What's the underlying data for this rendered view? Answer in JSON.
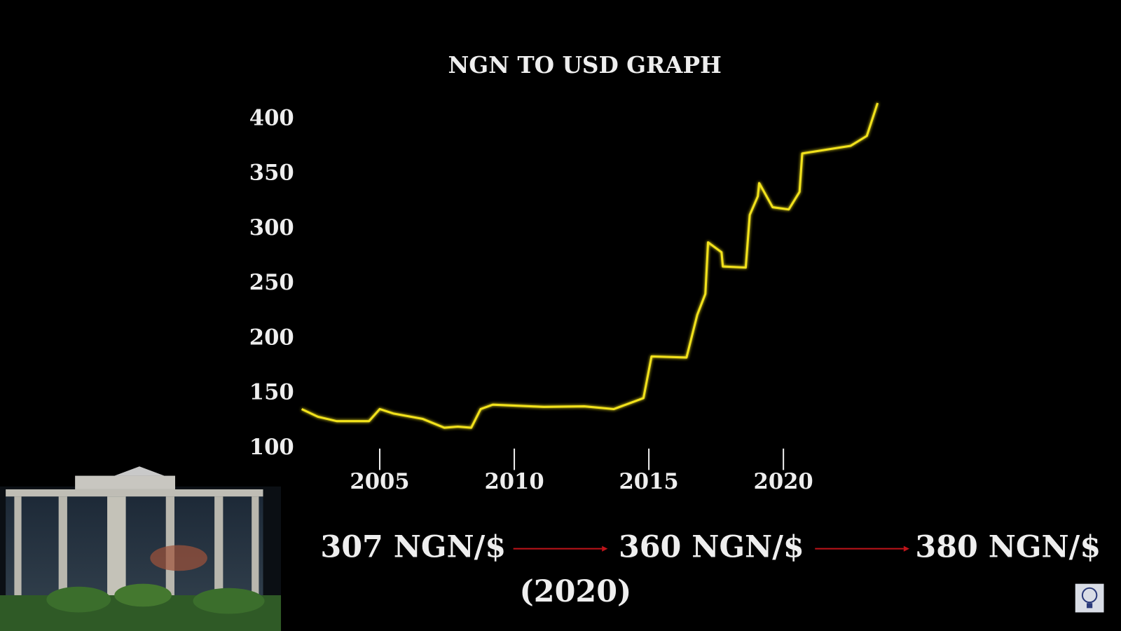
{
  "chart_data": {
    "type": "line",
    "title": "NGN TO USD GRAPH",
    "x": [
      2002.1,
      2002.7,
      2003.4,
      2004.6,
      2005.0,
      2005.5,
      2006.6,
      2007.4,
      2007.9,
      2008.4,
      2008.75,
      2009.2,
      2011.1,
      2012.6,
      2013.7,
      2014.8,
      2015.1,
      2016.4,
      2016.8,
      2017.1,
      2017.2,
      2017.7,
      2017.75,
      2018.6,
      2018.75,
      2019.05,
      2019.1,
      2019.6,
      2020.2,
      2020.6,
      2020.7,
      2022.5,
      2023.1,
      2023.5
    ],
    "series": [
      {
        "color": "#f2e21a",
        "values": [
          136,
          129,
          125,
          125,
          136,
          132,
          127,
          119,
          120,
          119,
          136,
          140,
          138,
          138.5,
          136,
          146,
          184,
          183,
          222,
          241,
          288,
          279,
          266,
          265,
          313,
          330,
          342,
          320,
          318,
          334,
          369,
          376,
          385,
          415
        ]
      }
    ],
    "xlim": [
      2002.1,
      2023.3
    ],
    "ylim": [
      100,
      400
    ],
    "xticks": [
      2005,
      2010,
      2015,
      2020
    ],
    "yticks": [
      100,
      150,
      200,
      250,
      300,
      350,
      400
    ],
    "grid": true,
    "annotations": [
      "307 NGN/$",
      "360 NGN/$",
      "380 NGN/$",
      "(2020)"
    ]
  }
}
